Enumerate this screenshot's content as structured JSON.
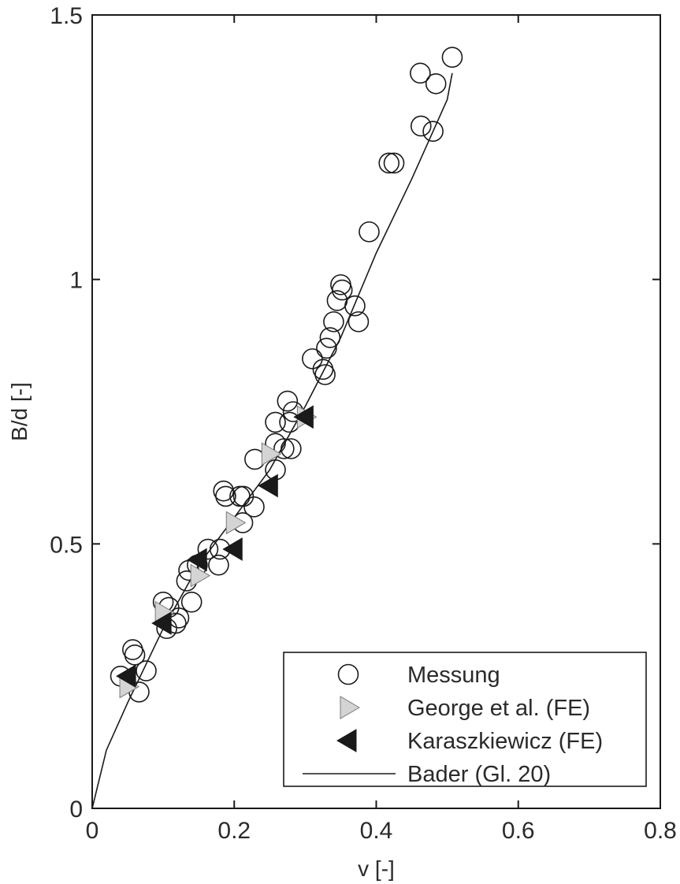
{
  "chart_data": {
    "type": "scatter",
    "title": "",
    "xlabel": "v [-]",
    "ylabel": "B/d [-]",
    "xlim": [
      0,
      0.8
    ],
    "ylim": [
      0,
      1.5
    ],
    "xticks": [
      0,
      0.2,
      0.4,
      0.6,
      0.8
    ],
    "yticks": [
      0,
      0.5,
      1,
      1.5
    ],
    "xtick_labels": [
      "0",
      "0.2",
      "0.4",
      "0.6",
      "0.8"
    ],
    "ytick_labels": [
      "0",
      "0.5",
      "1",
      "1.5"
    ],
    "grid": false,
    "legend_position": "bottom-right",
    "series": [
      {
        "name": "Messung",
        "marker": "open-circle",
        "color": "#1a1a1a",
        "points": [
          [
            0.04,
            0.25
          ],
          [
            0.057,
            0.3
          ],
          [
            0.06,
            0.29
          ],
          [
            0.066,
            0.22
          ],
          [
            0.076,
            0.26
          ],
          [
            0.1,
            0.39
          ],
          [
            0.105,
            0.34
          ],
          [
            0.108,
            0.38
          ],
          [
            0.118,
            0.35
          ],
          [
            0.122,
            0.36
          ],
          [
            0.133,
            0.43
          ],
          [
            0.136,
            0.45
          ],
          [
            0.14,
            0.39
          ],
          [
            0.148,
            0.46
          ],
          [
            0.163,
            0.49
          ],
          [
            0.178,
            0.46
          ],
          [
            0.18,
            0.49
          ],
          [
            0.185,
            0.6
          ],
          [
            0.188,
            0.59
          ],
          [
            0.208,
            0.59
          ],
          [
            0.212,
            0.54
          ],
          [
            0.213,
            0.59
          ],
          [
            0.228,
            0.57
          ],
          [
            0.229,
            0.66
          ],
          [
            0.258,
            0.64
          ],
          [
            0.258,
            0.69
          ],
          [
            0.258,
            0.73
          ],
          [
            0.27,
            0.68
          ],
          [
            0.275,
            0.77
          ],
          [
            0.278,
            0.73
          ],
          [
            0.28,
            0.68
          ],
          [
            0.283,
            0.75
          ],
          [
            0.31,
            0.85
          ],
          [
            0.325,
            0.83
          ],
          [
            0.328,
            0.82
          ],
          [
            0.33,
            0.87
          ],
          [
            0.335,
            0.89
          ],
          [
            0.34,
            0.92
          ],
          [
            0.345,
            0.96
          ],
          [
            0.35,
            0.99
          ],
          [
            0.352,
            0.98
          ],
          [
            0.37,
            0.95
          ],
          [
            0.375,
            0.92
          ],
          [
            0.39,
            1.09
          ],
          [
            0.418,
            1.22
          ],
          [
            0.425,
            1.22
          ],
          [
            0.462,
            1.39
          ],
          [
            0.463,
            1.29
          ],
          [
            0.48,
            1.28
          ],
          [
            0.484,
            1.37
          ],
          [
            0.507,
            1.42
          ]
        ]
      },
      {
        "name": "George et al. (FE)",
        "marker": "triangle-right",
        "color": "#d4d4d4",
        "points": [
          [
            0.05,
            0.23
          ],
          [
            0.1,
            0.37
          ],
          [
            0.15,
            0.44
          ],
          [
            0.2,
            0.54
          ],
          [
            0.25,
            0.67
          ],
          [
            0.3,
            0.74
          ]
        ]
      },
      {
        "name": "Karaszkiewicz (FE)",
        "marker": "triangle-left",
        "color": "#1a1a1a",
        "points": [
          [
            0.05,
            0.25
          ],
          [
            0.1,
            0.35
          ],
          [
            0.15,
            0.47
          ],
          [
            0.2,
            0.49
          ],
          [
            0.25,
            0.61
          ],
          [
            0.3,
            0.74
          ]
        ]
      },
      {
        "name": "Bader (Gl. 20)",
        "marker": "line",
        "color": "#1a1a1a",
        "points": [
          [
            0,
            0
          ],
          [
            0.02,
            0.11
          ],
          [
            0.05,
            0.2
          ],
          [
            0.1,
            0.34
          ],
          [
            0.15,
            0.46
          ],
          [
            0.2,
            0.55
          ],
          [
            0.25,
            0.64
          ],
          [
            0.3,
            0.76
          ],
          [
            0.35,
            0.89
          ],
          [
            0.4,
            1.05
          ],
          [
            0.45,
            1.19
          ],
          [
            0.5,
            1.34
          ],
          [
            0.507,
            1.39
          ]
        ]
      }
    ]
  }
}
